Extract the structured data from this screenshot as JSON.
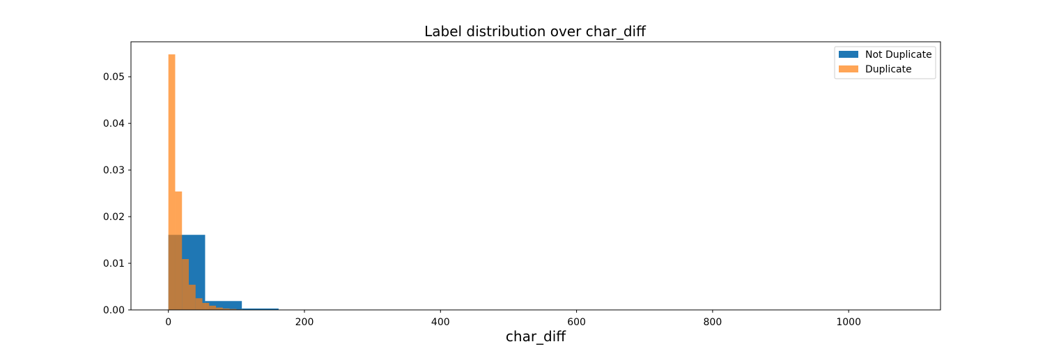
{
  "chart_data": {
    "type": "bar",
    "title": "Label distribution over char_diff",
    "xlabel": "char_diff",
    "ylabel": "",
    "xlim": [
      -55,
      1135
    ],
    "ylim": [
      0,
      0.0575
    ],
    "x_ticks": [
      0,
      200,
      400,
      600,
      800,
      1000
    ],
    "y_ticks": [
      0.0,
      0.01,
      0.02,
      0.03,
      0.04,
      0.05
    ],
    "x_tick_labels": [
      "0",
      "200",
      "400",
      "600",
      "800",
      "1000"
    ],
    "y_tick_labels": [
      "0.00",
      "0.01",
      "0.02",
      "0.03",
      "0.04",
      "0.05"
    ],
    "grid": false,
    "legend_position": "upper right",
    "series": [
      {
        "name": "Not Duplicate",
        "color": "#1f77b4",
        "opacity": 1.0,
        "bins": [
          {
            "x0": 0,
            "x1": 54,
            "value": 0.0161
          },
          {
            "x0": 54,
            "x1": 108,
            "value": 0.0019
          },
          {
            "x0": 108,
            "x1": 162,
            "value": 0.0003
          },
          {
            "x0": 162,
            "x1": 216,
            "value": 3e-05
          },
          {
            "x0": 216,
            "x1": 270,
            "value": 1e-05
          }
        ]
      },
      {
        "name": "Duplicate",
        "color": "#ff7f0e",
        "opacity": 0.7,
        "bins": [
          {
            "x0": 0,
            "x1": 10,
            "value": 0.0548
          },
          {
            "x0": 10,
            "x1": 20,
            "value": 0.0254
          },
          {
            "x0": 20,
            "x1": 30,
            "value": 0.0109
          },
          {
            "x0": 30,
            "x1": 40,
            "value": 0.0054
          },
          {
            "x0": 40,
            "x1": 50,
            "value": 0.0025
          },
          {
            "x0": 50,
            "x1": 60,
            "value": 0.0015
          },
          {
            "x0": 60,
            "x1": 70,
            "value": 0.0009
          },
          {
            "x0": 70,
            "x1": 80,
            "value": 0.0005
          },
          {
            "x0": 80,
            "x1": 90,
            "value": 0.0003
          },
          {
            "x0": 90,
            "x1": 100,
            "value": 0.0002
          },
          {
            "x0": 100,
            "x1": 110,
            "value": 0.0001
          }
        ]
      }
    ]
  }
}
